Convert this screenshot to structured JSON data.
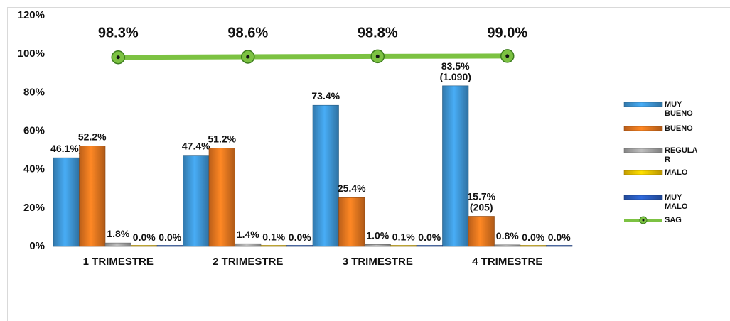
{
  "chart_data": {
    "type": "bar",
    "categories": [
      "1 TRIMESTRE",
      "2 TRIMESTRE",
      "3 TRIMESTRE",
      "4 TRIMESTRE"
    ],
    "series": [
      {
        "name": "MUY BUENO",
        "color": "#3f96d6",
        "values": [
          46.1,
          47.4,
          73.4,
          83.5
        ],
        "value_labels": [
          "46.1%)",
          "47.4%",
          "73.4%",
          "83.5%\n(1.090)"
        ]
      },
      {
        "name": "BUENO",
        "color": "#e8761f",
        "values": [
          52.2,
          51.2,
          25.4,
          15.7
        ],
        "value_labels": [
          "52.2%",
          "51.2%",
          "25.4%",
          "15.7%\n(205)"
        ]
      },
      {
        "name": "REGULAR",
        "color": "#a6a6a6",
        "values": [
          1.8,
          1.4,
          1.0,
          0.8
        ],
        "value_labels": [
          "1.8%",
          "1.4%",
          "1.0%",
          "0.8%"
        ]
      },
      {
        "name": "MALO",
        "color": "#f5c400",
        "values": [
          0.0,
          0.1,
          0.1,
          0.0
        ],
        "value_labels": [
          "0.0%",
          "0.1%",
          "0.1%",
          "0.0%"
        ]
      },
      {
        "name": "MUY MALO",
        "color": "#2a5cbf",
        "values": [
          0.0,
          0.0,
          0.0,
          0.0
        ],
        "value_labels": [
          "0.0%",
          "0.0%",
          "0.0%",
          "0.0%"
        ]
      },
      {
        "name": "SAG",
        "type": "line",
        "color": "#7cc242",
        "values": [
          98.3,
          98.6,
          98.8,
          99.0
        ],
        "value_labels": [
          "98.3%",
          "98.6%",
          "98.8%",
          "99.0%"
        ]
      }
    ],
    "ylim": [
      0,
      120
    ],
    "yticks": [
      {
        "value": 0,
        "label": "0%"
      },
      {
        "value": 20,
        "label": "20%"
      },
      {
        "value": 40,
        "label": "40%"
      },
      {
        "value": 60,
        "label": "60%"
      },
      {
        "value": 80,
        "label": "80%"
      },
      {
        "value": 100,
        "label": "100%"
      },
      {
        "value": 120,
        "label": "120%"
      }
    ],
    "legend": "right"
  }
}
